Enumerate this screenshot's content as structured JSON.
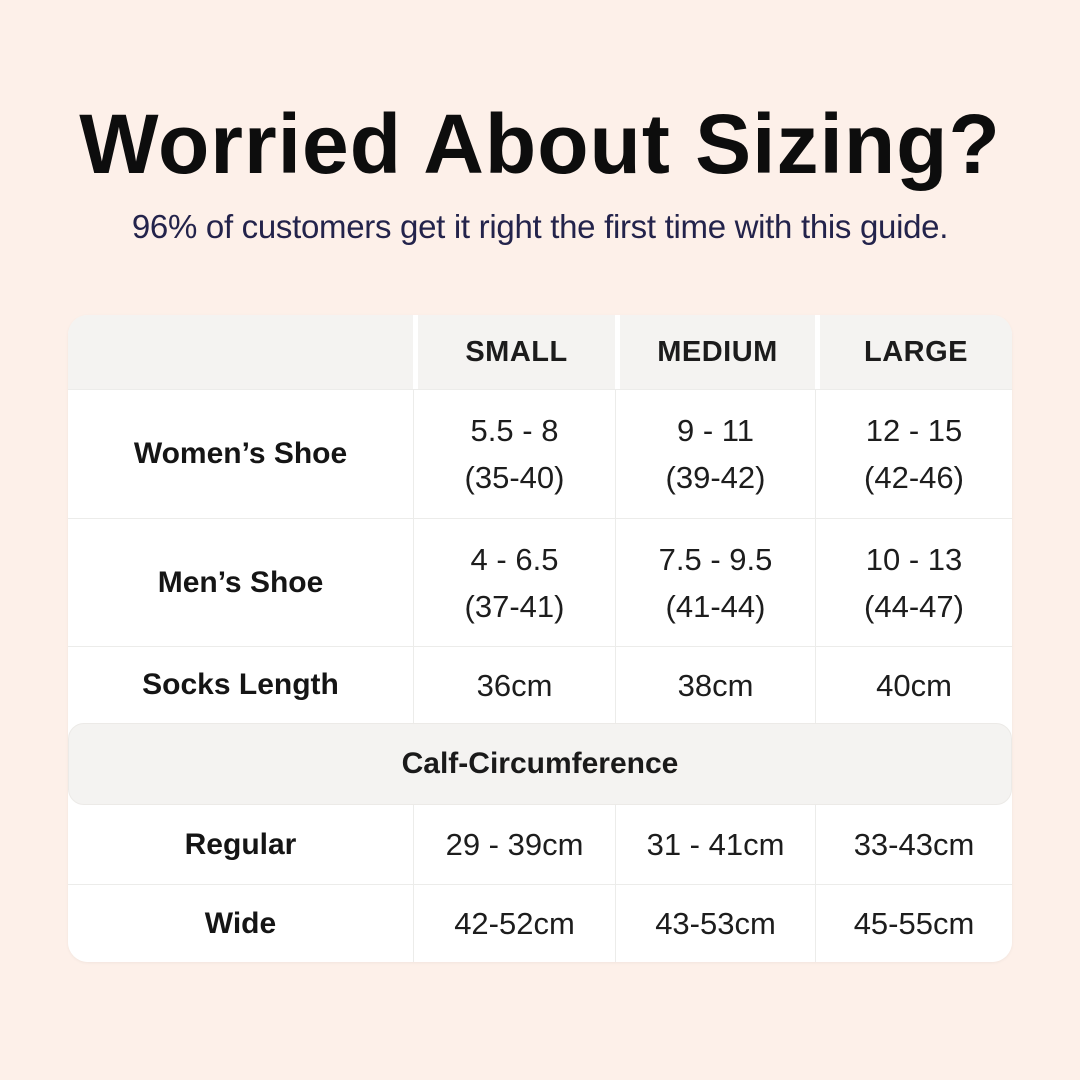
{
  "page": {
    "title": "Worried About Sizing?",
    "subtitle": "96% of customers get it right the first time with this guide."
  },
  "colors": {
    "background": "#fdf0e9",
    "card": "#ffffff",
    "header_band": "#f4f3f1",
    "border": "#ececea",
    "title_text": "#0d0d0d",
    "subtitle_text": "#23234b",
    "body_text": "#1d1d1d"
  },
  "table": {
    "column_headers": [
      "SMALL",
      "MEDIUM",
      "LARGE"
    ],
    "rows": [
      {
        "label": "Women’s Shoe",
        "cells": [
          {
            "line1": "5.5 - 8",
            "line2": "(35-40)"
          },
          {
            "line1": "9 - 11",
            "line2": "(39-42)"
          },
          {
            "line1": "12 - 15",
            "line2": "(42-46)"
          }
        ]
      },
      {
        "label": "Men’s Shoe",
        "cells": [
          {
            "line1": "4 - 6.5",
            "line2": "(37-41)"
          },
          {
            "line1": "7.5 - 9.5",
            "line2": "(41-44)"
          },
          {
            "line1": "10 - 13",
            "line2": "(44-47)"
          }
        ]
      },
      {
        "label": "Socks Length",
        "cells": [
          {
            "line1": "36cm"
          },
          {
            "line1": "38cm"
          },
          {
            "line1": "40cm"
          }
        ]
      }
    ],
    "section_header": "Calf-Circumference",
    "section_rows": [
      {
        "label": "Regular",
        "cells": [
          "29 - 39cm",
          "31 - 41cm",
          "33-43cm"
        ]
      },
      {
        "label": "Wide",
        "cells": [
          "42-52cm",
          "43-53cm",
          "45-55cm"
        ]
      }
    ]
  }
}
